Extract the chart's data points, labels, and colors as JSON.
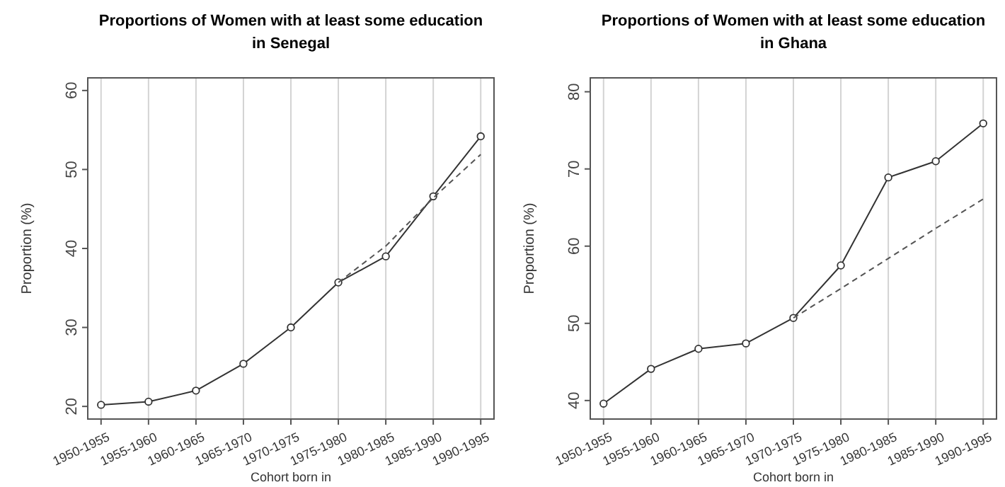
{
  "chart_data": [
    {
      "type": "line",
      "title": "Proportions of Women with at least some education\nin Senegal",
      "xlabel": "Cohort born in",
      "ylabel": "Proportion (%)",
      "categories": [
        "1950-1955",
        "1955-1960",
        "1960-1965",
        "1965-1970",
        "1970-1975",
        "1975-1980",
        "1980-1985",
        "1985-1990",
        "1990-1995"
      ],
      "ylim": [
        18.4,
        61.6
      ],
      "yticks": [
        20,
        30,
        40,
        50,
        60
      ],
      "grid": "x",
      "series": [
        {
          "color": "#333333",
          "marker": "circle",
          "line_style": "solid",
          "values": [
            20.2,
            20.6,
            22.0,
            25.4,
            30.0,
            35.7,
            39.0,
            46.6,
            54.2
          ]
        },
        {
          "color": "#555555",
          "marker": "none",
          "line_style": "dashed",
          "values": [
            null,
            null,
            null,
            null,
            null,
            35.7,
            40.3,
            46.4,
            51.9
          ]
        }
      ]
    },
    {
      "type": "line",
      "title": "Proportions of Women with at least some education\nin Ghana",
      "xlabel": "Cohort born in",
      "ylabel": "Proportion (%)",
      "categories": [
        "1950-1955",
        "1955-1960",
        "1960-1965",
        "1965-1970",
        "1970-1975",
        "1975-1980",
        "1980-1985",
        "1985-1990",
        "1990-1995"
      ],
      "ylim": [
        37.6,
        81.8
      ],
      "yticks": [
        40,
        50,
        60,
        70,
        80
      ],
      "grid": "x",
      "series": [
        {
          "color": "#333333",
          "marker": "circle",
          "line_style": "solid",
          "values": [
            39.6,
            44.1,
            46.7,
            47.4,
            50.7,
            57.5,
            68.9,
            71.0,
            75.9
          ]
        },
        {
          "color": "#555555",
          "marker": "none",
          "line_style": "dashed",
          "values": [
            null,
            null,
            null,
            null,
            50.7,
            54.5,
            58.4,
            62.3,
            66.1
          ]
        }
      ]
    }
  ]
}
